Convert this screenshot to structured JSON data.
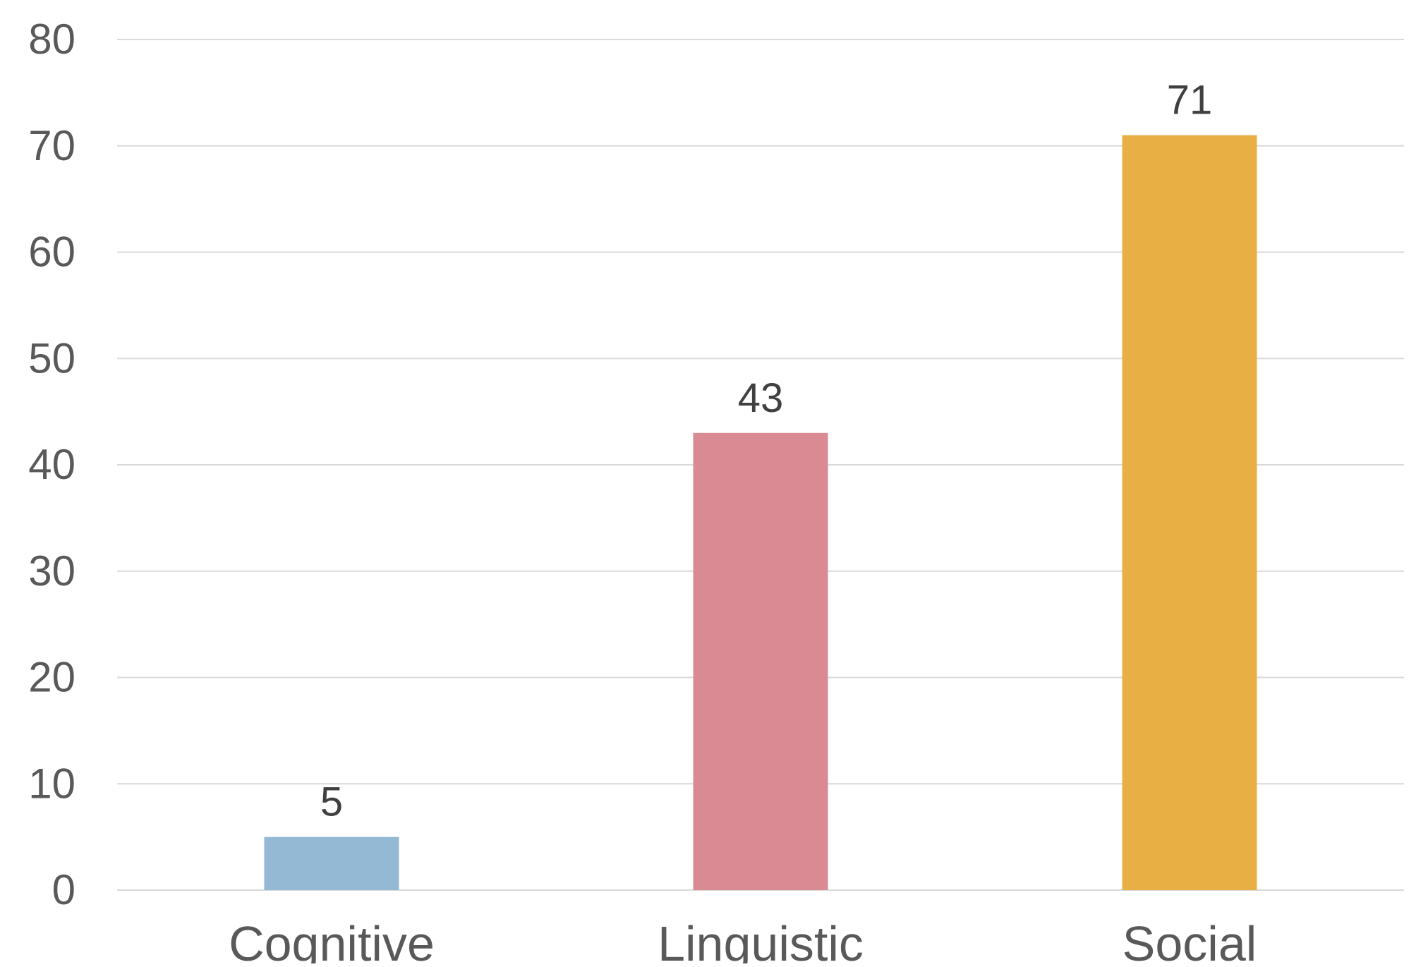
{
  "chart_data": {
    "type": "bar",
    "title": "",
    "xlabel": "",
    "ylabel": "",
    "categories": [
      "Cognitive",
      "Linguistic",
      "Social"
    ],
    "values": [
      5,
      43,
      71
    ],
    "data_labels": [
      "5",
      "43",
      "71"
    ],
    "bar_colors": [
      "#93b9d4",
      "#d98a92",
      "#e8b044"
    ],
    "ylim": [
      0,
      80
    ],
    "yticks": [
      "0",
      "10",
      "20",
      "30",
      "40",
      "50",
      "60",
      "70",
      "80"
    ],
    "grid": true,
    "legend": "none",
    "colors": {
      "grid": "#d9d9d9",
      "tick_text": "#595959",
      "data_label_text": "#404040"
    }
  }
}
